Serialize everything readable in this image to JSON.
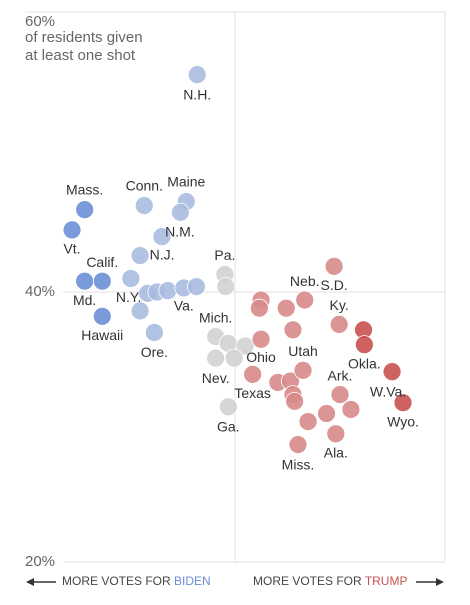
{
  "chart_data": {
    "type": "scatter",
    "subtitle": [
      "of residents given",
      "at least one shot"
    ],
    "left_label": {
      "prefix": "MORE VOTES FOR",
      "party": "BIDEN",
      "color": "#6b8fd6"
    },
    "right_label": {
      "prefix": "MORE VOTES FOR",
      "party": "TRUMP",
      "color": "#c9514f"
    },
    "xlim": [
      25,
      75
    ],
    "xticks": [
      50
    ],
    "ylim": [
      20,
      60
    ],
    "yticks": [
      {
        "value": 60,
        "label": "60%"
      },
      {
        "value": 40,
        "label": "40%"
      },
      {
        "value": 20,
        "label": "20%"
      }
    ],
    "grid": true,
    "series": [
      {
        "x": [
          45.5,
          32.1,
          30.6,
          34.2,
          32.1,
          34.2,
          39.2,
          44.2,
          43.5,
          41.3,
          38.7,
          37.6,
          39.6,
          40.7,
          42.0,
          43.9,
          45.4,
          38.7,
          40.4,
          48.8,
          48.9,
          47.7,
          49.2,
          51.2,
          47.7,
          49.9,
          49.2,
          53.1,
          52.9,
          56.1,
          58.3,
          61.8,
          56.9,
          62.4,
          53.1,
          65.3,
          65.4,
          52.1,
          55.1,
          56.6,
          58.1,
          56.9,
          57.1,
          62.5,
          63.8,
          60.9,
          58.7,
          62.0,
          57.5,
          68.7,
          70.0
        ],
        "values": [
          56.1,
          46.1,
          44.6,
          40.8,
          40.8,
          38.2,
          46.4,
          46.7,
          45.9,
          44.1,
          42.7,
          41.0,
          39.9,
          40.0,
          40.1,
          40.3,
          40.4,
          38.6,
          37.0,
          41.3,
          40.4,
          36.7,
          36.2,
          36.0,
          35.1,
          35.1,
          31.5,
          39.4,
          38.8,
          38.8,
          39.4,
          41.9,
          37.2,
          37.6,
          36.5,
          37.2,
          36.1,
          33.9,
          33.3,
          33.4,
          34.2,
          32.4,
          31.9,
          32.4,
          31.3,
          31.0,
          30.4,
          29.5,
          28.7,
          34.1,
          31.8
        ],
        "labels": [
          "N.H.",
          "Mass.",
          "Vt.",
          "Calif.",
          "Md.",
          "Hawaii",
          "Conn.",
          "Maine",
          null,
          "N.M.",
          "N.J.",
          null,
          "N.Y.",
          null,
          null,
          "Va.",
          null,
          null,
          "Ore.",
          "Pa.",
          null,
          "Mich.",
          null,
          null,
          "Nev.",
          null,
          "Ga.",
          null,
          null,
          null,
          "Neb.",
          "S.D.",
          null,
          "Ky.",
          "Ohio",
          null,
          "Okla.",
          "Texas",
          null,
          null,
          "Utah",
          null,
          null,
          "Ark.",
          null,
          null,
          null,
          "Ala.",
          "Miss.",
          "W.Va.",
          "Wyo."
        ],
        "colors": [
          "#a9bbdf",
          "#6b8fd6",
          "#6b8fd6",
          "#6b8fd6",
          "#6b8fd6",
          "#6b8fd6",
          "#a9bbdf",
          "#a9bbdf",
          "#a9bbdf",
          "#a9bbdf",
          "#a9bbdf",
          "#a9bbdf",
          "#a9bbdf",
          "#a9bbdf",
          "#a9bbdf",
          "#a9bbdf",
          "#a9bbdf",
          "#a9bbdf",
          "#a9bbdf",
          "#d2d2d2",
          "#d2d2d2",
          "#d2d2d2",
          "#d2d2d2",
          "#d2d2d2",
          "#d2d2d2",
          "#d2d2d2",
          "#d2d2d2",
          "#d68a88",
          "#d68a88",
          "#d68a88",
          "#d68a88",
          "#d68a88",
          "#d68a88",
          "#d68a88",
          "#d68a88",
          "#c9514f",
          "#c9514f",
          "#d68a88",
          "#d68a88",
          "#d68a88",
          "#d68a88",
          "#d68a88",
          "#d68a88",
          "#d68a88",
          "#d68a88",
          "#d68a88",
          "#d68a88",
          "#d68a88",
          "#d68a88",
          "#c9514f",
          "#c9514f"
        ]
      }
    ]
  }
}
